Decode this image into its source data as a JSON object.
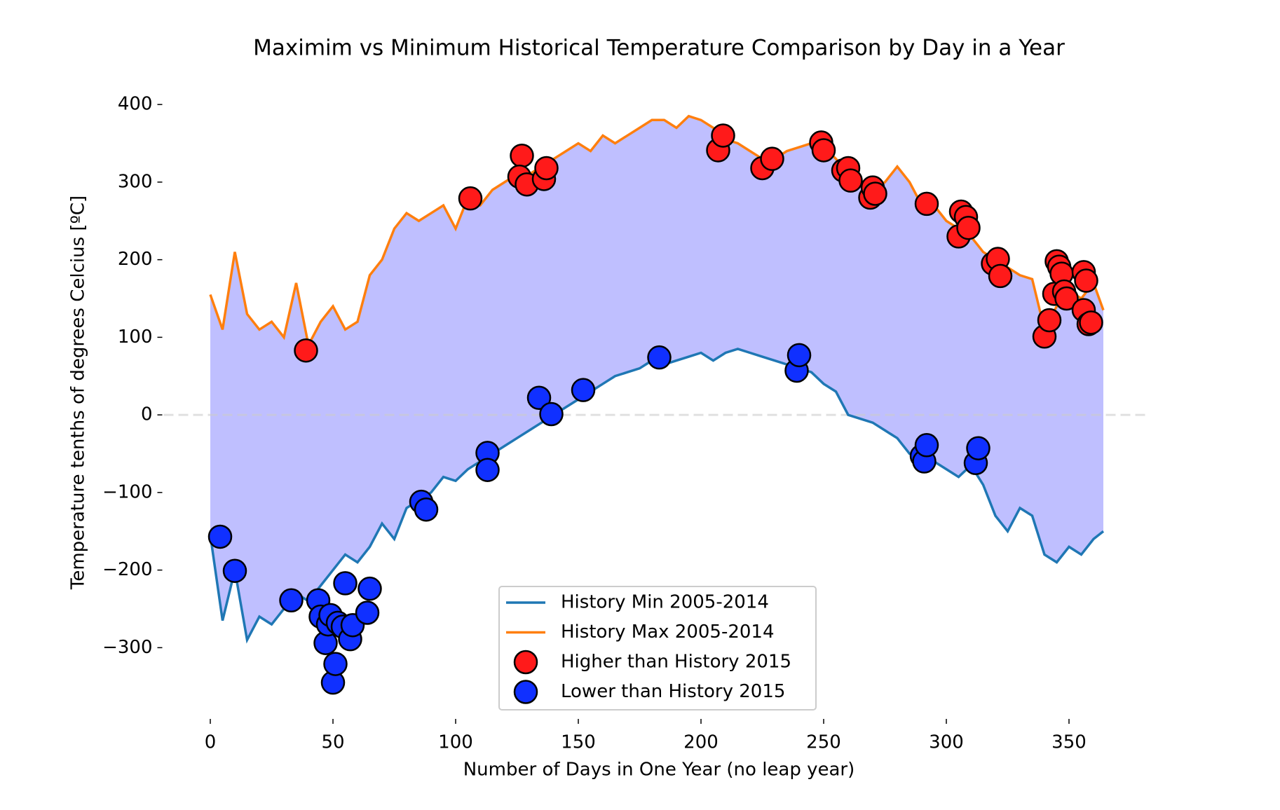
{
  "chart_data": {
    "type": "line",
    "title": "Maximim vs Minimum  Historical Temperature Comparison by Day in a Year",
    "x_label": "Number of Days in One Year (no leap year)",
    "y_label": "Temperature tenths of degrees Celcius [ºC]",
    "xlim": [
      -19,
      382
    ],
    "ylim": [
      -390,
      420
    ],
    "xticks": [
      0,
      50,
      100,
      150,
      200,
      250,
      300,
      350
    ],
    "yticks": [
      {
        "value": -300,
        "label": "−300"
      },
      {
        "value": -200,
        "label": "−200"
      },
      {
        "value": -100,
        "label": "−100"
      },
      0,
      100,
      200,
      300,
      400
    ],
    "fill_between": true,
    "fill_color": "#bfbfff",
    "reference_line": 0,
    "legend": "lower center",
    "series": [
      {
        "name": "History Min 2005-2014",
        "color": "#1f77b4",
        "mark": "line",
        "x": [
          0,
          5,
          10,
          15,
          20,
          25,
          30,
          35,
          40,
          45,
          50,
          55,
          60,
          65,
          70,
          75,
          80,
          85,
          90,
          95,
          100,
          105,
          110,
          115,
          120,
          125,
          130,
          135,
          140,
          145,
          150,
          155,
          160,
          165,
          170,
          175,
          180,
          185,
          190,
          195,
          200,
          205,
          210,
          215,
          220,
          225,
          230,
          235,
          240,
          245,
          250,
          255,
          260,
          265,
          270,
          275,
          280,
          285,
          290,
          295,
          300,
          305,
          310,
          315,
          320,
          325,
          330,
          335,
          340,
          345,
          350,
          355,
          360,
          364
        ],
        "values": [
          -155,
          -265,
          -200,
          -290,
          -260,
          -270,
          -250,
          -230,
          -240,
          -220,
          -200,
          -180,
          -190,
          -170,
          -140,
          -160,
          -120,
          -110,
          -100,
          -80,
          -85,
          -70,
          -60,
          -50,
          -40,
          -30,
          -20,
          -10,
          0,
          10,
          20,
          30,
          40,
          50,
          55,
          60,
          70,
          65,
          70,
          75,
          80,
          70,
          80,
          85,
          80,
          75,
          70,
          65,
          60,
          55,
          40,
          30,
          0,
          -5,
          -10,
          -20,
          -30,
          -50,
          -45,
          -60,
          -70,
          -80,
          -65,
          -90,
          -130,
          -150,
          -120,
          -130,
          -180,
          -190,
          -170,
          -180,
          -160,
          -150
        ]
      },
      {
        "name": "History Max 2005-2014",
        "color": "#ff7f0e",
        "mark": "line",
        "x": [
          0,
          5,
          10,
          15,
          20,
          25,
          30,
          35,
          40,
          45,
          50,
          55,
          60,
          65,
          70,
          75,
          80,
          85,
          90,
          95,
          100,
          105,
          110,
          115,
          120,
          125,
          130,
          135,
          140,
          145,
          150,
          155,
          160,
          165,
          170,
          175,
          180,
          185,
          190,
          195,
          200,
          205,
          210,
          215,
          220,
          225,
          230,
          235,
          240,
          245,
          250,
          255,
          260,
          265,
          270,
          275,
          280,
          285,
          290,
          295,
          300,
          305,
          310,
          315,
          320,
          325,
          330,
          335,
          340,
          345,
          350,
          355,
          360,
          364
        ],
        "values": [
          155,
          110,
          210,
          130,
          110,
          120,
          100,
          170,
          90,
          120,
          140,
          110,
          120,
          180,
          200,
          240,
          260,
          250,
          260,
          270,
          240,
          280,
          270,
          290,
          300,
          310,
          310,
          320,
          330,
          340,
          350,
          340,
          360,
          350,
          360,
          370,
          380,
          380,
          370,
          385,
          380,
          370,
          355,
          350,
          340,
          330,
          330,
          340,
          345,
          350,
          345,
          330,
          310,
          300,
          290,
          300,
          320,
          300,
          270,
          270,
          250,
          240,
          230,
          210,
          200,
          190,
          180,
          175,
          110,
          140,
          160,
          150,
          170,
          135
        ]
      },
      {
        "name": "Higher than History 2015",
        "color": "#ff1a1a",
        "mark": "scatter",
        "x": [
          39,
          106,
          127,
          126,
          129,
          136,
          137,
          207,
          209,
          225,
          229,
          249,
          250,
          258,
          260,
          261,
          269,
          270,
          271,
          292,
          306,
          305,
          308,
          309,
          319,
          321,
          322,
          340,
          342,
          344,
          345,
          346,
          347,
          348,
          349,
          356,
          356,
          357,
          358,
          359
        ],
        "values": [
          83,
          279,
          334,
          307,
          297,
          304,
          318,
          341,
          360,
          318,
          330,
          351,
          341,
          315,
          318,
          302,
          280,
          293,
          285,
          272,
          262,
          230,
          255,
          241,
          195,
          201,
          179,
          101,
          122,
          156,
          198,
          191,
          182,
          159,
          150,
          135,
          184,
          173,
          117,
          119
        ]
      },
      {
        "name": "Lower than History 2015",
        "color": "#1030ff",
        "mark": "scatter",
        "x": [
          4,
          10,
          33,
          44,
          45,
          47,
          48,
          49,
          50,
          51,
          52,
          54,
          55,
          57,
          58,
          64,
          65,
          86,
          88,
          113,
          113,
          134,
          139,
          152,
          183,
          239,
          240,
          290,
          291,
          292,
          312,
          313
        ],
        "values": [
          -157,
          -201,
          -239,
          -239,
          -260,
          -294,
          -270,
          -258,
          -345,
          -321,
          -268,
          -273,
          -217,
          -289,
          -271,
          -255,
          -224,
          -112,
          -122,
          -49,
          -71,
          22,
          1,
          32,
          74,
          57,
          77,
          -53,
          -60,
          -39,
          -62,
          -43
        ]
      }
    ]
  }
}
